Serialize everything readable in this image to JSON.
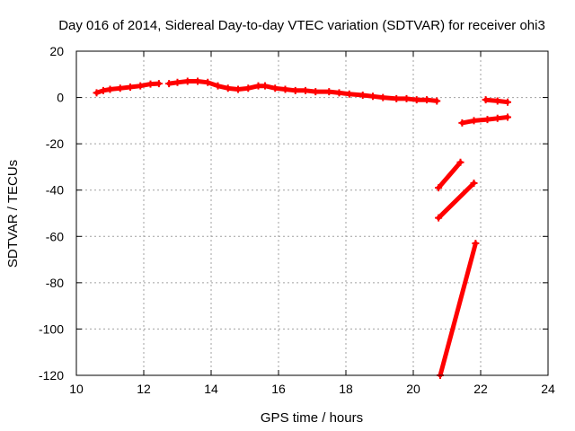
{
  "chart_data": {
    "type": "scatter",
    "title": "Day 016 of 2014, Sidereal Day-to-day VTEC variation (SDTVAR) for receiver ohi3",
    "xlabel": "GPS time / hours",
    "ylabel": "SDTVAR / TECUs",
    "xlim": [
      10,
      24
    ],
    "ylim": [
      -120,
      20
    ],
    "x_ticks": [
      10,
      12,
      14,
      16,
      18,
      20,
      22,
      24
    ],
    "y_ticks": [
      -120,
      -100,
      -80,
      -60,
      -40,
      -20,
      0,
      20
    ],
    "x_tick_labels": [
      "10",
      "12",
      "14",
      "16",
      "18",
      "20",
      "22",
      "24"
    ],
    "y_tick_labels": [
      "-120",
      "-100",
      "-80",
      "-60",
      "-40",
      "-20",
      "0",
      "20"
    ],
    "grid": true,
    "marker": "plus",
    "color": "#ff0000",
    "series": [
      {
        "x": [
          10.6,
          10.8,
          11.0,
          11.3,
          11.6,
          11.9,
          12.2,
          12.45
        ],
        "y": [
          2,
          3,
          3.5,
          4,
          4.5,
          5,
          5.8,
          6
        ]
      },
      {
        "x": [
          12.75,
          13.0,
          13.3,
          13.6,
          13.9,
          14.2,
          14.5,
          14.8,
          15.1,
          15.4,
          15.6,
          15.9,
          16.2,
          16.5,
          16.8,
          17.1,
          17.5,
          17.8,
          18.1,
          18.5,
          18.8,
          19.1,
          19.5,
          19.8,
          20.1,
          20.4,
          20.7
        ],
        "y": [
          6,
          6.5,
          7,
          7,
          6.5,
          5,
          4,
          3.5,
          4,
          5,
          5,
          4,
          3.5,
          3,
          3,
          2.5,
          2.5,
          2,
          1.5,
          1,
          0.5,
          0,
          -0.5,
          -0.5,
          -1,
          -1,
          -1.5
        ]
      },
      {
        "x": [
          20.75,
          21.4
        ],
        "y": [
          -39,
          -28
        ]
      },
      {
        "x": [
          20.75,
          21.8
        ],
        "y": [
          -52,
          -37
        ]
      },
      {
        "x": [
          20.8,
          21.85
        ],
        "y": [
          -120,
          -63
        ]
      },
      {
        "x": [
          21.45,
          21.8,
          22.2,
          22.5,
          22.8
        ],
        "y": [
          -11,
          -10,
          -9.5,
          -9,
          -8.5
        ]
      },
      {
        "x": [
          22.15,
          22.5,
          22.8
        ],
        "y": [
          -1,
          -1.5,
          -2
        ]
      }
    ]
  }
}
